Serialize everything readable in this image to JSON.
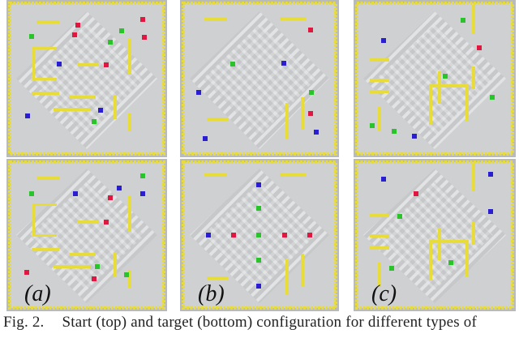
{
  "figure": {
    "columns": [
      {
        "label": "(a)"
      },
      {
        "label": "(b)"
      },
      {
        "label": "(c)"
      }
    ],
    "colors": {
      "wall": "#e8dc3a",
      "floor": "#c9cacb",
      "red": "#e0173f",
      "green": "#2bc32b",
      "blue": "#2a1fd0"
    }
  },
  "caption": {
    "label": "Fig. 2.",
    "text": "Start (top) and target (bottom) configuration for different types of"
  }
}
